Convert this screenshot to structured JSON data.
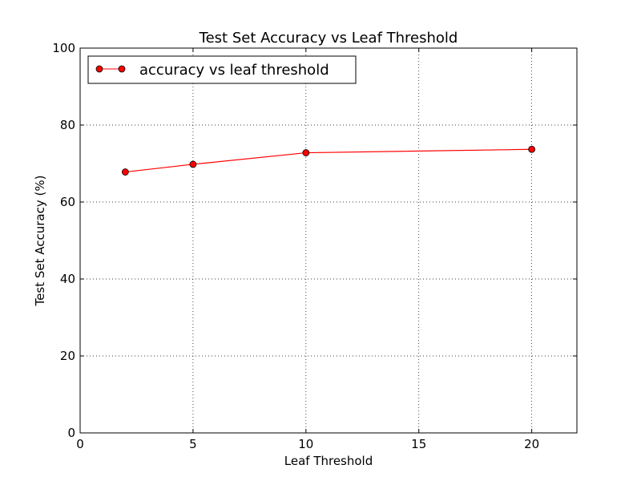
{
  "chart_data": {
    "type": "line",
    "title": "Test Set Accuracy vs Leaf Threshold",
    "xlabel": "Leaf Threshold",
    "ylabel": "Test Set Accuracy (%)",
    "xlim": [
      0,
      22
    ],
    "ylim": [
      0,
      100
    ],
    "xticks": [
      0,
      5,
      10,
      15,
      20
    ],
    "yticks": [
      0,
      20,
      40,
      60,
      80,
      100
    ],
    "grid": true,
    "legend_position": "top-left",
    "series": [
      {
        "name": "accuracy vs leaf threshold",
        "x": [
          2,
          5,
          10,
          20
        ],
        "y": [
          67.8,
          69.8,
          72.8,
          73.7
        ],
        "color": "#ff0000",
        "marker": "circle"
      }
    ]
  }
}
